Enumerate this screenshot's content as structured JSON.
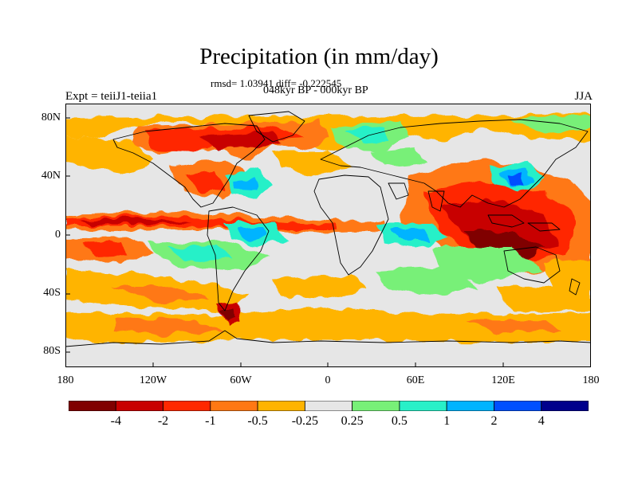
{
  "title": "Precipitation (in mm/day)",
  "stats": "rmsd= 1.03941 diff= -0.222545",
  "period": "048kyr BP - 000kyr BP",
  "experiment": "Expt = teiiJ1-teiia1",
  "season": "JJA",
  "map": {
    "projection": "cylindrical equidistant",
    "lon_range": [
      -180,
      180
    ],
    "lat_range": [
      -90,
      90
    ],
    "x_ticks": [
      "180",
      "120W",
      "60W",
      "0",
      "60E",
      "120E",
      "180"
    ],
    "y_ticks": [
      "80N",
      "40N",
      "0",
      "40S",
      "80S"
    ],
    "background_color": "#e6e6e6",
    "coastline_color": "#000000"
  },
  "colorbar": {
    "colors": [
      "#800000",
      "#c80000",
      "#ff2800",
      "#ff7814",
      "#ffb400",
      "#e6e6e6",
      "#78f078",
      "#28f0c8",
      "#00b4ff",
      "#0050ff",
      "#00008c"
    ],
    "labels": [
      "-4",
      "-2",
      "-1",
      "-0.5",
      "-0.25",
      "0.25",
      "0.5",
      "1",
      "2",
      "4"
    ]
  },
  "chart_data": {
    "type": "heatmap",
    "title": "Precipitation (in mm/day)",
    "subtitle": "048kyr BP - 000kyr BP",
    "units": "mm/day",
    "levels": [
      -4,
      -2,
      -1,
      -0.5,
      -0.25,
      0.25,
      0.5,
      1,
      2,
      4
    ],
    "regions": [
      {
        "lon": [
          -180,
          180
        ],
        "lat": [
          2,
          10
        ],
        "value": -1.5
      },
      {
        "lon": [
          -180,
          -90
        ],
        "lat": [
          -10,
          -2
        ],
        "value": -0.6
      },
      {
        "lon": [
          -140,
          -40
        ],
        "lat": [
          -30,
          -20
        ],
        "value": 0.6
      },
      {
        "lon": [
          -50,
          10
        ],
        "lat": [
          -8,
          0
        ],
        "value": 0.8
      },
      {
        "lon": [
          15,
          60
        ],
        "lat": [
          -2,
          6
        ],
        "value": 1.5
      },
      {
        "lon": [
          90,
          160
        ],
        "lat": [
          -10,
          20
        ],
        "value": -3.0
      },
      {
        "lon": [
          100,
          140
        ],
        "lat": [
          25,
          40
        ],
        "value": 1.2
      },
      {
        "lon": [
          -150,
          -30
        ],
        "lat": [
          50,
          78
        ],
        "value": -1.5
      },
      {
        "lon": [
          -90,
          -60
        ],
        "lat": [
          25,
          40
        ],
        "value": 1.0
      },
      {
        "lon": [
          -180,
          180
        ],
        "lat": [
          -55,
          -40
        ],
        "value": -0.4
      },
      {
        "lon": [
          -180,
          180
        ],
        "lat": [
          -75,
          -60
        ],
        "value": -0.3
      },
      {
        "lon": [
          -70,
          -60
        ],
        "lat": [
          -55,
          -45
        ],
        "value": -4.5
      }
    ]
  }
}
